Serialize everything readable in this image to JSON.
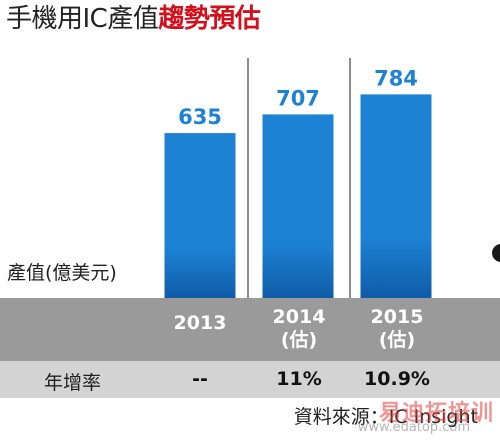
{
  "title": {
    "plain": "手機用IC產值",
    "accent": "趨勢預估"
  },
  "unit_label": "產值(億美元)",
  "chart_data": {
    "type": "bar",
    "categories": [
      "2013",
      "2014",
      "2015"
    ],
    "values": [
      635,
      707,
      784
    ],
    "value_labels": [
      "635",
      "707",
      "784"
    ],
    "ylabel": "產值(億美元)",
    "bar_color": "#1d82d4",
    "bar_gradient_bottom": "#0f5ca8"
  },
  "year_row": {
    "cols": [
      {
        "year": "2013",
        "note": ""
      },
      {
        "year": "2014",
        "note": "(估)"
      },
      {
        "year": "2015",
        "note": "(估)"
      }
    ]
  },
  "growth_row": {
    "label": "年增率",
    "values": [
      "--",
      "11%",
      "10.9%"
    ]
  },
  "source": "資料來源：IC Insight",
  "watermark": {
    "main": "易迪拓培训",
    "url": "www.edatop.com"
  }
}
